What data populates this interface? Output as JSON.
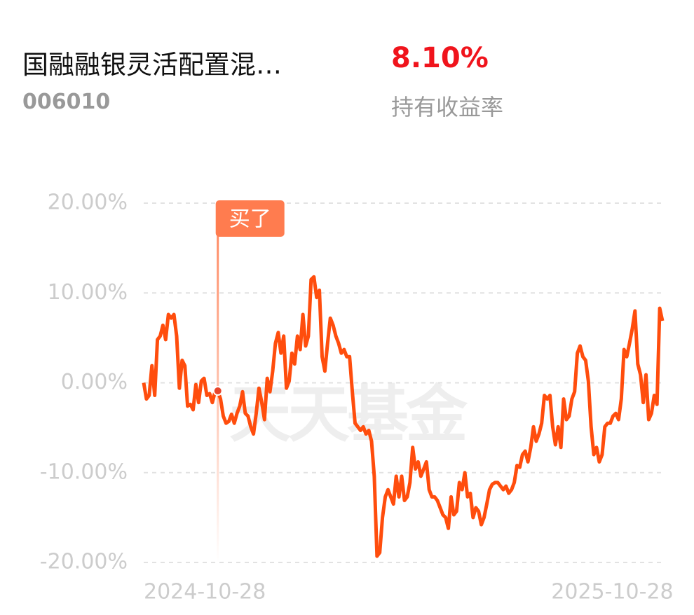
{
  "header": {
    "fund_name": "国融融银灵活配置混…",
    "fund_code": "006010",
    "return_value": "8.10%",
    "return_label": "持有收益率"
  },
  "chart_data": {
    "type": "line",
    "watermark": "天天基金",
    "color": "#ff4d0d",
    "ylim": [
      -20,
      20
    ],
    "yticks": [
      {
        "value": 20,
        "label": "20.00%"
      },
      {
        "value": 10,
        "label": "10.00%"
      },
      {
        "value": 0,
        "label": "0.00%"
      },
      {
        "value": -10,
        "label": "-10.00%"
      },
      {
        "value": -20,
        "label": "-20.00%"
      }
    ],
    "grid": true,
    "xticks": [
      {
        "value": 0,
        "label": "2024-10-28"
      },
      {
        "value": 193,
        "label": "2025-10-28"
      }
    ],
    "annotation": {
      "text": "买了",
      "index": 27
    },
    "values": [
      0,
      -1.8,
      -1.4,
      1.9,
      -1.4,
      4.8,
      5.2,
      6.4,
      4.8,
      7.6,
      7.2,
      7.6,
      5.2,
      -0.6,
      2.5,
      1.9,
      -2.6,
      -2.4,
      -3.0,
      -0.2,
      -2.2,
      0.2,
      0.5,
      -1.4,
      -1.2,
      -2.2,
      -1.0,
      -0.9,
      -1.8,
      -3.7,
      -4.5,
      -4.3,
      -3.5,
      -4.5,
      -3.4,
      -2.6,
      -1.0,
      -3.4,
      -3.7,
      -4.9,
      -5.7,
      -3.4,
      -0.6,
      -2.2,
      -4.1,
      0.5,
      -1.0,
      1.3,
      4.4,
      5.6,
      3.3,
      5.2,
      -0.6,
      0.2,
      3.3,
      2.1,
      5.2,
      3.7,
      7.6,
      4.1,
      5.2,
      11.5,
      11.8,
      9.5,
      10.3,
      2.9,
      1.3,
      4.4,
      7.2,
      6.4,
      5.2,
      4.4,
      3.3,
      3.7,
      2.9,
      2.9,
      -1.0,
      -4.5,
      -4.9,
      -5.3,
      -4.9,
      -5.7,
      -5.3,
      -6.5,
      -10.4,
      -19.3,
      -18.9,
      -15.0,
      -12.7,
      -11.9,
      -12.7,
      -13.5,
      -10.4,
      -12.7,
      -10.4,
      -13.1,
      -12.7,
      -11.1,
      -7.2,
      -9.6,
      -8.8,
      -10.4,
      -9.6,
      -8.8,
      -11.9,
      -12.7,
      -12.7,
      -13.1,
      -13.9,
      -14.7,
      -15.0,
      -16.2,
      -12.7,
      -14.7,
      -14.3,
      -11.1,
      -11.9,
      -10.0,
      -12.7,
      -12.3,
      -15.0,
      -13.9,
      -14.3,
      -15.8,
      -15.0,
      -13.5,
      -11.9,
      -11.3,
      -11.1,
      -11.1,
      -11.5,
      -11.9,
      -11.5,
      -12.3,
      -11.9,
      -11.1,
      -9.2,
      -9.4,
      -8.0,
      -7.6,
      -8.8,
      -7.2,
      -4.9,
      -6.5,
      -5.7,
      -4.5,
      -1.4,
      -1.8,
      -1.4,
      -4.9,
      -6.9,
      -4.9,
      -7.2,
      -1.8,
      -4.1,
      -3.7,
      -1.8,
      -1.0,
      3.3,
      4.1,
      2.9,
      2.5,
      0.2,
      -4.9,
      -8.0,
      -7.2,
      -8.8,
      -8.0,
      -4.9,
      -4.5,
      -4.5,
      -3.7,
      -3.4,
      -4.1,
      -1.8,
      3.7,
      2.9,
      4.4,
      6.0,
      8.0,
      2.1,
      0.9,
      -2.2,
      0.9,
      -4.1,
      -3.4,
      -1.4,
      -2.4,
      8.3,
      6.9
    ]
  }
}
